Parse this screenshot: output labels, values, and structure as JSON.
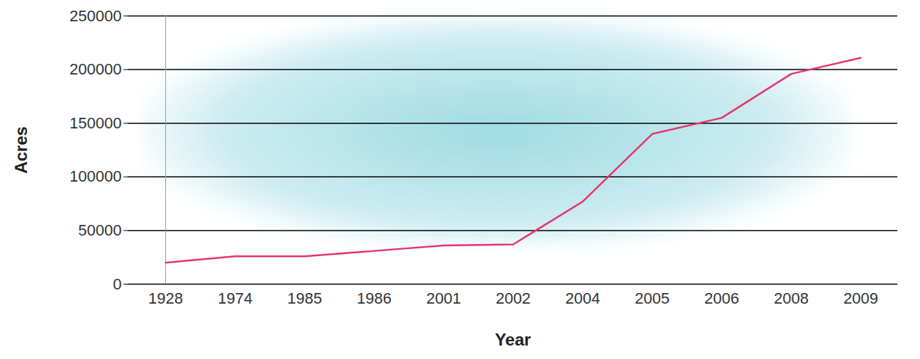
{
  "chart_data": {
    "type": "line",
    "x_label": "Year",
    "y_label": "Acres",
    "categories": [
      "1928",
      "1974",
      "1985",
      "1986",
      "2001",
      "2002",
      "2004",
      "2005",
      "2006",
      "2008",
      "2009"
    ],
    "values": [
      20000,
      26000,
      26000,
      31000,
      36000,
      37000,
      77000,
      140000,
      155000,
      196000,
      211000
    ],
    "color": "#e8336b",
    "ylim": [
      0,
      250000
    ],
    "yticks": [
      0,
      50000,
      100000,
      150000,
      200000,
      250000
    ],
    "grid": true
  }
}
